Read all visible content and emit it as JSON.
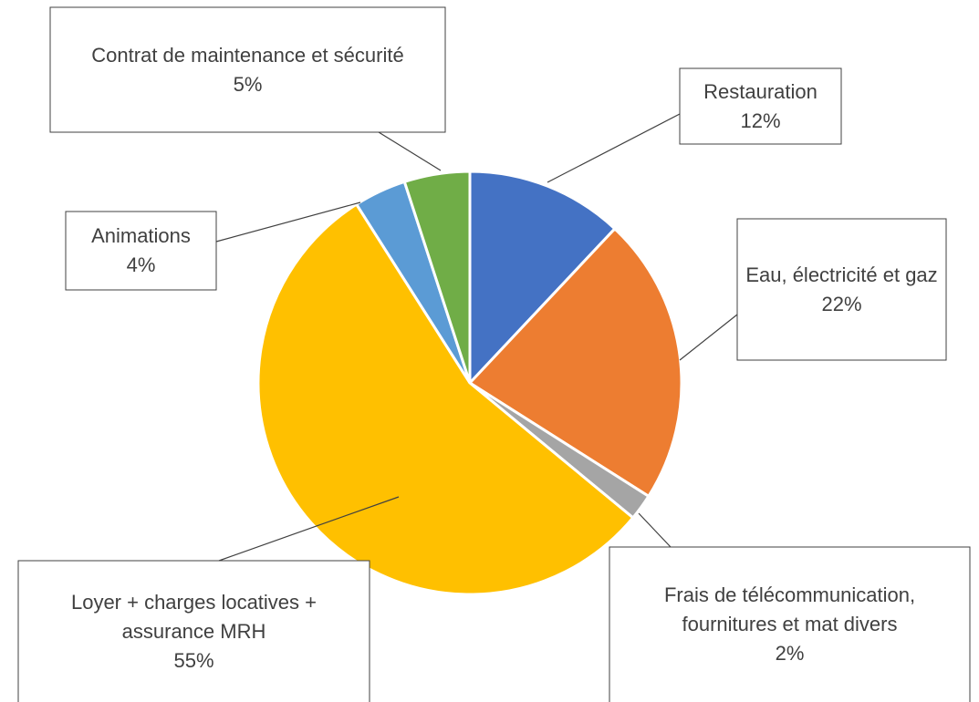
{
  "chart_data": {
    "type": "pie",
    "categories": [
      "Restauration",
      "Eau, électricité et gaz",
      "Frais de télécommunication, fournitures et mat divers",
      "Loyer + charges locatives + assurance MRH",
      "Animations",
      "Contrat de maintenance et sécurité"
    ],
    "values": [
      12,
      22,
      2,
      55,
      4,
      5
    ],
    "value_labels": [
      "12%",
      "22%",
      "2%",
      "55%",
      "4%",
      "5%"
    ],
    "colors": [
      "#4472c4",
      "#ed7d31",
      "#a5a5a5",
      "#ffc000",
      "#5b9bd5",
      "#70ad47"
    ]
  }
}
